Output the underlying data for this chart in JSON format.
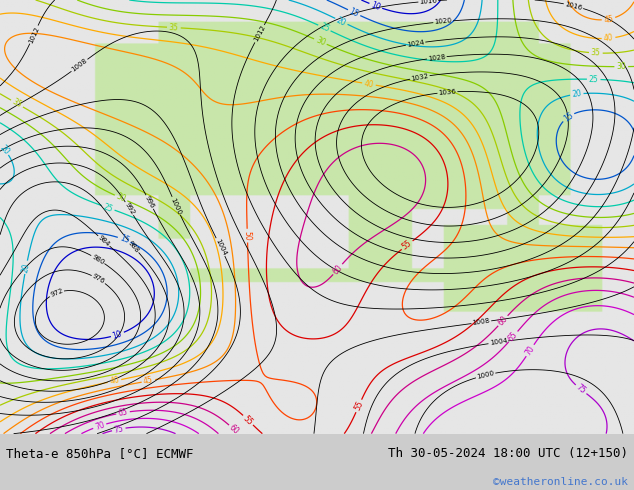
{
  "title_left": "Theta-e 850hPa [°C] ECMWF",
  "title_right": "Th 30-05-2024 18:00 UTC (12+150)",
  "watermark": "©weatheronline.co.uk",
  "bg_color": "#cccccc",
  "map_bg_color": "#e8e8e8",
  "land_color_warm": "#c8e8a0",
  "land_color_mid": "#d8f0b0",
  "fig_width": 6.34,
  "fig_height": 4.9,
  "dpi": 100,
  "bottom_text_color": "#000000",
  "watermark_color": "#4477cc",
  "font_size_bottom": 9,
  "font_size_watermark": 8,
  "theta_e_colors": {
    "very_cold": "#0000cc",
    "cold": "#00aacc",
    "cool": "#00cc88",
    "mild": "#88cc00",
    "warm": "#ffaa00",
    "hot": "#ff5500",
    "very_hot": "#cc0000",
    "extreme": "#cc00aa"
  }
}
